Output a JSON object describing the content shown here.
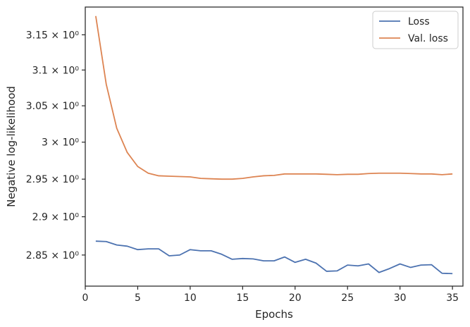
{
  "chart_data": {
    "type": "line",
    "xlabel": "Epochs",
    "ylabel": "Negative log-likelihood",
    "xlim": [
      0,
      36
    ],
    "ylim": [
      2.81,
      3.19
    ],
    "x_ticks": [
      0,
      5,
      10,
      15,
      20,
      25,
      30,
      35
    ],
    "y_ticks": [
      {
        "value": 2.85,
        "label": "2.85 × 10⁰"
      },
      {
        "value": 2.9,
        "label": "2.9 × 10⁰"
      },
      {
        "value": 2.95,
        "label": "2.95 × 10⁰"
      },
      {
        "value": 3.0,
        "label": "3 × 10⁰"
      },
      {
        "value": 3.05,
        "label": "3.05 × 10⁰"
      },
      {
        "value": 3.1,
        "label": "3.1 × 10⁰"
      },
      {
        "value": 3.15,
        "label": "3.15 × 10⁰"
      }
    ],
    "y_scale": "log",
    "grid": false,
    "legend_position": "top-right",
    "x": [
      1,
      2,
      3,
      4,
      5,
      6,
      7,
      8,
      9,
      10,
      11,
      12,
      13,
      14,
      15,
      16,
      17,
      18,
      19,
      20,
      21,
      22,
      23,
      24,
      25,
      26,
      27,
      28,
      29,
      30,
      31,
      32,
      33,
      34,
      35
    ],
    "series": [
      {
        "name": "Loss",
        "color": "#4c72b0",
        "values": [
          2.868,
          2.8675,
          2.863,
          2.8615,
          2.857,
          2.858,
          2.858,
          2.849,
          2.85,
          2.857,
          2.8555,
          2.8555,
          2.851,
          2.8445,
          2.8455,
          2.845,
          2.8425,
          2.8425,
          2.8475,
          2.8405,
          2.8445,
          2.8395,
          2.829,
          2.8295,
          2.837,
          2.836,
          2.8385,
          2.8275,
          2.8325,
          2.8385,
          2.834,
          2.837,
          2.8375,
          2.8265,
          2.826
        ]
      },
      {
        "name": "Val. loss",
        "color": "#dd8452",
        "values": [
          3.177,
          3.08,
          3.019,
          2.986,
          2.967,
          2.958,
          2.9545,
          2.954,
          2.9535,
          2.953,
          2.951,
          2.9505,
          2.95,
          2.95,
          2.951,
          2.953,
          2.9545,
          2.955,
          2.957,
          2.957,
          2.957,
          2.957,
          2.9565,
          2.956,
          2.9565,
          2.9565,
          2.9575,
          2.958,
          2.958,
          2.958,
          2.9575,
          2.957,
          2.957,
          2.956,
          2.957
        ]
      }
    ]
  }
}
